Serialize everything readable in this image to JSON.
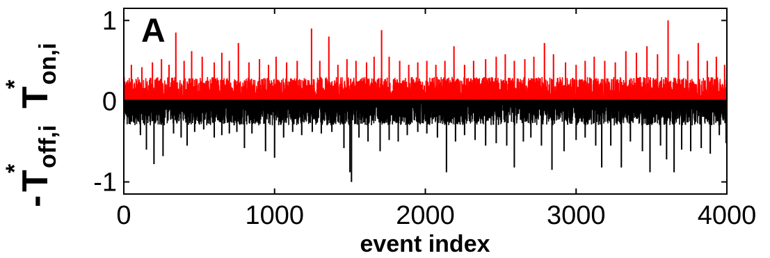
{
  "chart_data": {
    "type": "line",
    "panel_label": "A",
    "xlabel": "event index",
    "ylabel": {
      "lower_sign": "-",
      "lower_main": "T",
      "lower_star": "*",
      "lower_sub": "off,i",
      "upper_main": "T",
      "upper_star": "*",
      "upper_sub": "on,i"
    },
    "xlim": [
      0,
      4000
    ],
    "ylim": [
      -1.15,
      1.15
    ],
    "xticks": [
      0,
      1000,
      2000,
      3000,
      4000
    ],
    "xtick_labels": [
      "0",
      "1000",
      "2000",
      "3000",
      "4000"
    ],
    "yticks": [
      -1,
      0,
      1
    ],
    "ytick_labels": [
      "-1",
      "0",
      "1"
    ],
    "grid": false,
    "legend": "none",
    "n_events": 4000,
    "series": [
      {
        "key": "on",
        "color": "#ff0000",
        "direction": "positive",
        "typical_range": [
          0,
          0.3
        ],
        "peaks": [
          {
            "x": 50,
            "y": 0.45
          },
          {
            "x": 120,
            "y": 0.42
          },
          {
            "x": 190,
            "y": 0.48
          },
          {
            "x": 250,
            "y": 0.52
          },
          {
            "x": 300,
            "y": 0.45
          },
          {
            "x": 345,
            "y": 0.85
          },
          {
            "x": 400,
            "y": 0.5
          },
          {
            "x": 450,
            "y": 0.62
          },
          {
            "x": 520,
            "y": 0.55
          },
          {
            "x": 600,
            "y": 0.48
          },
          {
            "x": 650,
            "y": 0.6
          },
          {
            "x": 700,
            "y": 0.5
          },
          {
            "x": 760,
            "y": 0.72
          },
          {
            "x": 830,
            "y": 0.48
          },
          {
            "x": 900,
            "y": 0.52
          },
          {
            "x": 960,
            "y": 0.45
          },
          {
            "x": 1010,
            "y": 0.55
          },
          {
            "x": 1080,
            "y": 0.48
          },
          {
            "x": 1150,
            "y": 0.5
          },
          {
            "x": 1245,
            "y": 0.9
          },
          {
            "x": 1300,
            "y": 0.5
          },
          {
            "x": 1360,
            "y": 0.8
          },
          {
            "x": 1420,
            "y": 0.45
          },
          {
            "x": 1480,
            "y": 0.52
          },
          {
            "x": 1540,
            "y": 0.5
          },
          {
            "x": 1610,
            "y": 0.48
          },
          {
            "x": 1660,
            "y": 0.55
          },
          {
            "x": 1710,
            "y": 0.88
          },
          {
            "x": 1760,
            "y": 0.55
          },
          {
            "x": 1830,
            "y": 0.5
          },
          {
            "x": 1890,
            "y": 0.45
          },
          {
            "x": 1950,
            "y": 0.48
          },
          {
            "x": 2010,
            "y": 0.5
          },
          {
            "x": 2070,
            "y": 0.45
          },
          {
            "x": 2130,
            "y": 0.5
          },
          {
            "x": 2190,
            "y": 0.68
          },
          {
            "x": 2260,
            "y": 0.45
          },
          {
            "x": 2320,
            "y": 0.5
          },
          {
            "x": 2400,
            "y": 0.52
          },
          {
            "x": 2470,
            "y": 0.55
          },
          {
            "x": 2530,
            "y": 0.58
          },
          {
            "x": 2590,
            "y": 0.5
          },
          {
            "x": 2660,
            "y": 0.52
          },
          {
            "x": 2720,
            "y": 0.55
          },
          {
            "x": 2790,
            "y": 0.72
          },
          {
            "x": 2850,
            "y": 0.58
          },
          {
            "x": 2930,
            "y": 0.48
          },
          {
            "x": 3000,
            "y": 0.45
          },
          {
            "x": 3060,
            "y": 0.5
          },
          {
            "x": 3120,
            "y": 0.55
          },
          {
            "x": 3190,
            "y": 0.5
          },
          {
            "x": 3260,
            "y": 0.48
          },
          {
            "x": 3330,
            "y": 0.62
          },
          {
            "x": 3400,
            "y": 0.6
          },
          {
            "x": 3470,
            "y": 0.68
          },
          {
            "x": 3540,
            "y": 0.58
          },
          {
            "x": 3610,
            "y": 1.0
          },
          {
            "x": 3680,
            "y": 0.58
          },
          {
            "x": 3740,
            "y": 0.5
          },
          {
            "x": 3810,
            "y": 0.72
          },
          {
            "x": 3870,
            "y": 0.5
          },
          {
            "x": 3930,
            "y": 0.55
          },
          {
            "x": 3985,
            "y": 0.45
          }
        ]
      },
      {
        "key": "off",
        "color": "#000000",
        "direction": "negative",
        "typical_range": [
          -0.3,
          0
        ],
        "peaks": [
          {
            "x": 40,
            "y": -0.28
          },
          {
            "x": 110,
            "y": -0.42
          },
          {
            "x": 150,
            "y": -0.6
          },
          {
            "x": 200,
            "y": -0.78
          },
          {
            "x": 260,
            "y": -0.68
          },
          {
            "x": 330,
            "y": -0.4
          },
          {
            "x": 380,
            "y": -0.45
          },
          {
            "x": 420,
            "y": -0.55
          },
          {
            "x": 470,
            "y": -0.38
          },
          {
            "x": 530,
            "y": -0.35
          },
          {
            "x": 600,
            "y": -0.45
          },
          {
            "x": 650,
            "y": -0.42
          },
          {
            "x": 700,
            "y": -0.4
          },
          {
            "x": 750,
            "y": -0.38
          },
          {
            "x": 800,
            "y": -0.58
          },
          {
            "x": 850,
            "y": -0.4
          },
          {
            "x": 940,
            "y": -0.62
          },
          {
            "x": 1000,
            "y": -0.7
          },
          {
            "x": 1060,
            "y": -0.45
          },
          {
            "x": 1120,
            "y": -0.38
          },
          {
            "x": 1180,
            "y": -0.42
          },
          {
            "x": 1250,
            "y": -0.38
          },
          {
            "x": 1310,
            "y": -0.4
          },
          {
            "x": 1380,
            "y": -0.38
          },
          {
            "x": 1460,
            "y": -0.58
          },
          {
            "x": 1500,
            "y": -0.88
          },
          {
            "x": 1510,
            "y": -1.0
          },
          {
            "x": 1560,
            "y": -0.45
          },
          {
            "x": 1620,
            "y": -0.5
          },
          {
            "x": 1700,
            "y": -0.62
          },
          {
            "x": 1760,
            "y": -0.48
          },
          {
            "x": 1820,
            "y": -0.5
          },
          {
            "x": 1880,
            "y": -0.42
          },
          {
            "x": 1950,
            "y": -0.38
          },
          {
            "x": 2010,
            "y": -0.4
          },
          {
            "x": 2080,
            "y": -0.45
          },
          {
            "x": 2140,
            "y": -0.88
          },
          {
            "x": 2200,
            "y": -0.5
          },
          {
            "x": 2260,
            "y": -0.42
          },
          {
            "x": 2330,
            "y": -0.48
          },
          {
            "x": 2400,
            "y": -0.55
          },
          {
            "x": 2470,
            "y": -0.52
          },
          {
            "x": 2540,
            "y": -0.55
          },
          {
            "x": 2590,
            "y": -0.82
          },
          {
            "x": 2650,
            "y": -0.5
          },
          {
            "x": 2700,
            "y": -0.45
          },
          {
            "x": 2770,
            "y": -0.55
          },
          {
            "x": 2840,
            "y": -0.85
          },
          {
            "x": 2920,
            "y": -0.62
          },
          {
            "x": 3000,
            "y": -0.48
          },
          {
            "x": 3060,
            "y": -0.45
          },
          {
            "x": 3130,
            "y": -0.55
          },
          {
            "x": 3170,
            "y": -0.82
          },
          {
            "x": 3230,
            "y": -0.55
          },
          {
            "x": 3300,
            "y": -0.82
          },
          {
            "x": 3360,
            "y": -0.5
          },
          {
            "x": 3440,
            "y": -0.62
          },
          {
            "x": 3490,
            "y": -0.88
          },
          {
            "x": 3560,
            "y": -0.55
          },
          {
            "x": 3600,
            "y": -0.72
          },
          {
            "x": 3650,
            "y": -0.88
          },
          {
            "x": 3700,
            "y": -0.6
          },
          {
            "x": 3760,
            "y": -0.62
          },
          {
            "x": 3830,
            "y": -0.58
          },
          {
            "x": 3890,
            "y": -0.65
          },
          {
            "x": 3950,
            "y": -0.42
          },
          {
            "x": 3995,
            "y": -0.52
          }
        ]
      }
    ]
  }
}
